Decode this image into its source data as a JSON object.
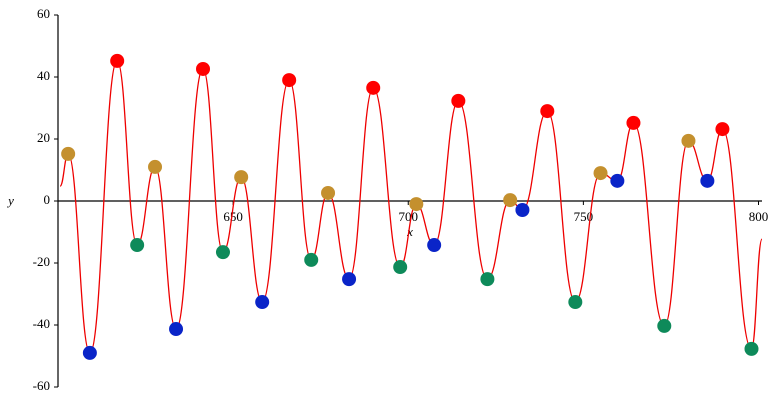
{
  "chart_data": {
    "type": "line",
    "xlabel": "x",
    "ylabel": "y",
    "xlim": [
      600,
      801
    ],
    "ylim": [
      -60,
      60
    ],
    "xticks": [
      650,
      700,
      750,
      800
    ],
    "yticks": [
      -60,
      -40,
      -20,
      0,
      20,
      40,
      60
    ],
    "grid": false,
    "series": [
      {
        "style": "line",
        "color": "#ee0000",
        "x": [
          600.6,
          602.9,
          609.1,
          616.9,
          622.6,
          627.7,
          633.7,
          641.4,
          647.1,
          652.3,
          658.3,
          666,
          672.3,
          677.1,
          683.1,
          690,
          697.7,
          702.3,
          707.4,
          714.3,
          722.6,
          729.1,
          732.6,
          739.7,
          747.7,
          754.9,
          759.7,
          764.3,
          773.1,
          780,
          785.4,
          789.7,
          798,
          801
        ],
        "values": [
          4.8,
          15.2,
          -49,
          45.2,
          -14.2,
          11,
          -41.3,
          42.6,
          -16.5,
          7.7,
          -32.6,
          39,
          -19,
          2.6,
          -25.2,
          36.5,
          -21.3,
          -1,
          -14.2,
          32.3,
          -25.2,
          0.3,
          -2.9,
          29,
          -32.6,
          9,
          6.5,
          25.2,
          -40.3,
          19.4,
          6.5,
          23.2,
          -47.7,
          -12.3
        ]
      },
      {
        "style": "point",
        "color": "#ff0000",
        "x": [
          616.9,
          641.4,
          666,
          690,
          714.3,
          739.7,
          764.3,
          789.7
        ],
        "values": [
          45.2,
          42.6,
          39,
          36.5,
          32.3,
          29,
          25.2,
          23.2
        ]
      },
      {
        "style": "point",
        "color": "#0a24c8",
        "x": [
          609.1,
          633.7,
          658.3,
          683.1,
          707.4,
          732.6,
          759.7,
          785.4
        ],
        "values": [
          -49,
          -41.3,
          -32.6,
          -25.2,
          -14.2,
          -2.9,
          6.5,
          6.5
        ]
      },
      {
        "style": "point",
        "color": "#c4902e",
        "x": [
          602.9,
          627.7,
          652.3,
          677.1,
          702.3,
          729.1,
          754.9,
          780
        ],
        "values": [
          15.2,
          11,
          7.7,
          2.6,
          -1,
          0.3,
          9,
          19.4
        ]
      },
      {
        "style": "point",
        "color": "#0e8a5a",
        "x": [
          622.6,
          647.1,
          672.3,
          697.7,
          722.6,
          747.7,
          773.1,
          798
        ],
        "values": [
          -14.2,
          -16.5,
          -19,
          -21.3,
          -25.2,
          -32.6,
          -40.3,
          -47.7
        ]
      }
    ]
  }
}
